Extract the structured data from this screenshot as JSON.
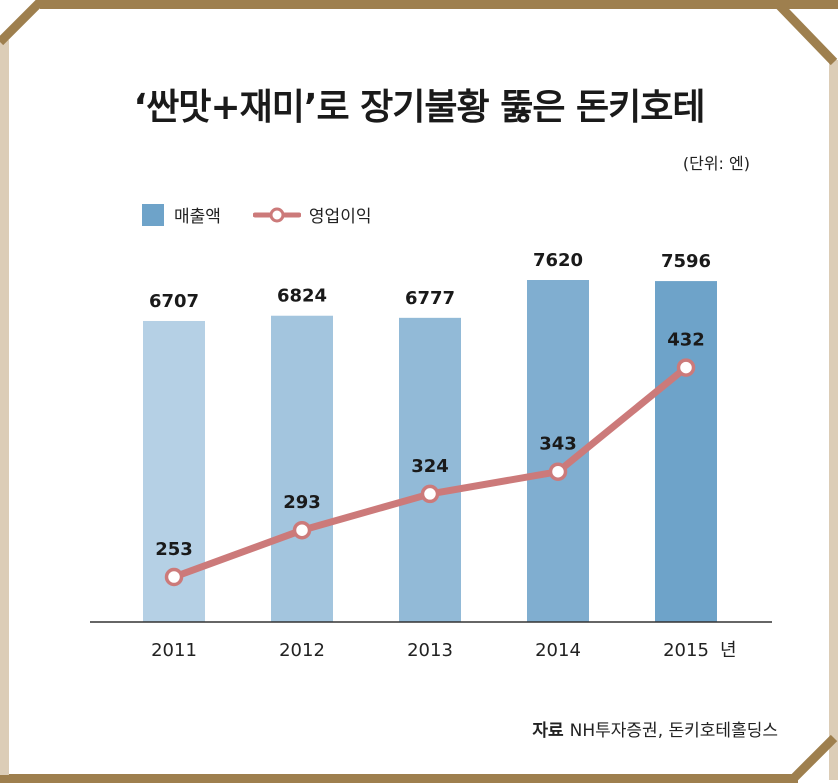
{
  "title": "‘싼맛+재미’로 장기불황 뚫은 돈키호테",
  "unit": "(단위: 엔)",
  "legend": {
    "bar": "매출액",
    "line": "영업이익"
  },
  "source": {
    "label": "자료",
    "text": "NH투자증권, 돈키호테홀딩스"
  },
  "x_unit": "년",
  "colors": {
    "bar_light": "#b5d0e5",
    "bar_dark": "#6ea3c9",
    "line": "#cc7a7a",
    "frame_dark": "#9e7f4e",
    "frame_light": "#dccdb7"
  },
  "chart_data": {
    "type": "bar",
    "categories": [
      "2011",
      "2012",
      "2013",
      "2014",
      "2015"
    ],
    "series": [
      {
        "name": "매출액",
        "type": "bar",
        "values": [
          6707,
          6824,
          6777,
          7620,
          7596
        ]
      },
      {
        "name": "영업이익",
        "type": "line",
        "values": [
          253,
          293,
          324,
          343,
          432
        ]
      }
    ]
  }
}
